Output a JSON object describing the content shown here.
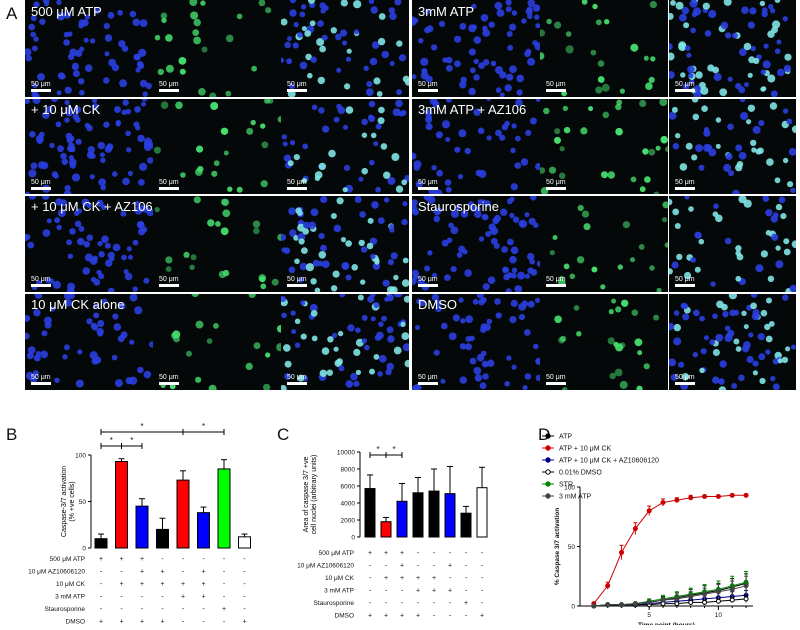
{
  "panel_labels": {
    "a": "A",
    "b": "B",
    "c": "C",
    "d": "D"
  },
  "micrographs": {
    "scale_label": "50 μm",
    "rows": [
      {
        "left": "500 μM ATP",
        "right": "3mM ATP"
      },
      {
        "left": "+ 10 μM CK",
        "right": "3mM ATP + AZ106"
      },
      {
        "left": "+ 10 μM CK + AZ106",
        "right": "Staurosporine"
      },
      {
        "left": "10 μM CK alone",
        "right": "DMSO"
      }
    ],
    "colors": {
      "blue": "#2a3fe0",
      "green": "#46e070",
      "cyan": "#7fe6e6",
      "background": "#050808"
    }
  },
  "chart_data": [
    {
      "type": "bar",
      "panel": "B",
      "ylabel": "Caspase-3/7 activation\n(% +ve cells)",
      "ylim": [
        0,
        100
      ],
      "yticks": [
        0,
        50,
        100
      ],
      "values": [
        10,
        93,
        45,
        20,
        73,
        38,
        85,
        12
      ],
      "errors": [
        5,
        3,
        8,
        12,
        10,
        6,
        10,
        3
      ],
      "colors": [
        "#000000",
        "#ff0000",
        "#0000ff",
        "#000000",
        "#ff0000",
        "#0000ff",
        "#00ff00",
        "#ffffff"
      ],
      "significance": [
        "*",
        "*",
        "*",
        "*"
      ],
      "condition_rows": [
        {
          "label": "500 μM ATP",
          "signs": [
            "+",
            "+",
            "+",
            "-",
            "-",
            "-",
            "-",
            "-"
          ]
        },
        {
          "label": "10 μM AZ10606120",
          "signs": [
            "-",
            "-",
            "+",
            "+",
            "-",
            "+",
            "-",
            "-"
          ]
        },
        {
          "label": "10 μM CK",
          "signs": [
            "-",
            "+",
            "+",
            "+",
            "+",
            "+",
            "-",
            "-"
          ]
        },
        {
          "label": "3 mM ATP",
          "signs": [
            "-",
            "-",
            "-",
            "-",
            "+",
            "+",
            "-",
            "-"
          ]
        },
        {
          "label": "Staurosporine",
          "signs": [
            "-",
            "-",
            "-",
            "-",
            "-",
            "-",
            "+",
            "-"
          ]
        },
        {
          "label": "DMSO",
          "signs": [
            "+",
            "+",
            "+",
            "+",
            "-",
            "-",
            "-",
            "+"
          ]
        }
      ]
    },
    {
      "type": "bar",
      "panel": "C",
      "ylabel": "Area of caspase 3/7 +ve\ncell nuclei (arbitrary units)",
      "ylim": [
        0,
        10000
      ],
      "yticks": [
        0,
        2000,
        4000,
        6000,
        8000,
        10000
      ],
      "values": [
        5700,
        1800,
        4200,
        5200,
        5400,
        5100,
        2800,
        5800
      ],
      "errors": [
        1600,
        500,
        2100,
        1800,
        2600,
        3200,
        800,
        2400
      ],
      "colors": [
        "#000000",
        "#ff0000",
        "#0000ff",
        "#000000",
        "#000000",
        "#0000ff",
        "#000000",
        "#ffffff"
      ],
      "significance": [
        "*",
        "*"
      ],
      "condition_rows": [
        {
          "label": "500 μM ATP",
          "signs": [
            "+",
            "+",
            "+",
            "-",
            "-",
            "-",
            "-",
            "-"
          ]
        },
        {
          "label": "10 μM AZ10606120",
          "signs": [
            "-",
            "-",
            "+",
            "-",
            "-",
            "+",
            "-",
            "-"
          ]
        },
        {
          "label": "10 μM CK",
          "signs": [
            "-",
            "+",
            "+",
            "+",
            "+",
            "-",
            "-",
            "-"
          ]
        },
        {
          "label": "3 mM ATP",
          "signs": [
            "-",
            "-",
            "-",
            "+",
            "+",
            "+",
            "-",
            "-"
          ]
        },
        {
          "label": "Staurosporine",
          "signs": [
            "-",
            "-",
            "-",
            "-",
            "-",
            "-",
            "+",
            "-"
          ]
        },
        {
          "label": "DMSO",
          "signs": [
            "+",
            "+",
            "+",
            "+",
            "-",
            "-",
            "-",
            "+"
          ]
        }
      ]
    },
    {
      "type": "line",
      "panel": "D",
      "xlabel": "Time point (hours)",
      "ylabel": "% Caspase 3/7 activation",
      "xlim": [
        0,
        12.5
      ],
      "ylim": [
        0,
        100
      ],
      "xticks": [
        5,
        10
      ],
      "yticks": [
        0,
        50,
        100
      ],
      "x": [
        1,
        2,
        3,
        4,
        5,
        6,
        7,
        8,
        9,
        10,
        11,
        12
      ],
      "series": [
        {
          "name": "ATP",
          "color": "#000000",
          "marker": "filled",
          "values": [
            0,
            1,
            1,
            2,
            3,
            5,
            7,
            9,
            11,
            13,
            16,
            19
          ],
          "err": [
            0,
            1,
            1,
            1,
            2,
            3,
            4,
            5,
            6,
            6,
            7,
            8
          ]
        },
        {
          "name": "ATP + 10 μM CK",
          "color": "#cc0000",
          "marker": "filled",
          "values": [
            2,
            17,
            45,
            65,
            80,
            87,
            89,
            91,
            92,
            92,
            93,
            93
          ],
          "err": [
            1,
            3,
            6,
            5,
            4,
            3,
            2,
            2,
            1,
            1,
            1,
            1
          ]
        },
        {
          "name": "ATP + 10 μM CK + AZ10606120",
          "color": "#000088",
          "marker": "filled",
          "values": [
            0,
            1,
            1,
            1,
            2,
            3,
            4,
            5,
            6,
            7,
            8,
            9
          ],
          "err": [
            0,
            1,
            1,
            1,
            1,
            2,
            2,
            3,
            3,
            4,
            4,
            4
          ]
        },
        {
          "name": "0.01% DMSO",
          "color": "#000000",
          "marker": "open",
          "values": [
            0,
            1,
            1,
            1,
            1,
            2,
            2,
            3,
            3,
            4,
            5,
            6
          ],
          "err": [
            0,
            0,
            1,
            1,
            1,
            1,
            1,
            2,
            2,
            2,
            2,
            3
          ]
        },
        {
          "name": "STR",
          "color": "#008800",
          "marker": "filled",
          "values": [
            0,
            1,
            1,
            2,
            4,
            6,
            8,
            10,
            12,
            14,
            17,
            20
          ],
          "err": [
            0,
            1,
            1,
            1,
            2,
            3,
            4,
            5,
            6,
            7,
            8,
            9
          ]
        },
        {
          "name": "3 mM ATP",
          "color": "#444444",
          "marker": "filled",
          "values": [
            0,
            1,
            1,
            2,
            3,
            5,
            6,
            8,
            10,
            12,
            14,
            17
          ],
          "err": [
            0,
            1,
            1,
            1,
            2,
            2,
            3,
            4,
            5,
            6,
            7,
            8
          ]
        }
      ]
    }
  ]
}
